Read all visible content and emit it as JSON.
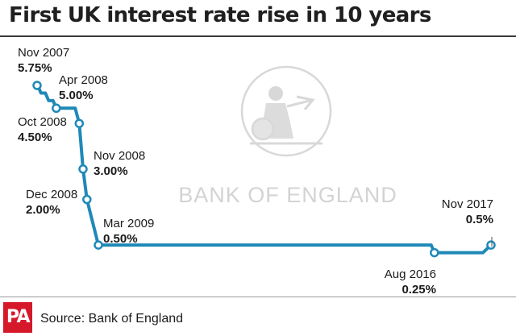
{
  "title": "First UK interest rate rise in 10 years",
  "source": "Source: Bank of England",
  "logo_text": "PA",
  "watermark_text": "BANK OF ENGLAND",
  "colors": {
    "line": "#1f89b8",
    "logo": "#d6182b",
    "watermark": "#d3d3d3"
  },
  "chart_data": {
    "type": "line",
    "title": "First UK interest rate rise in 10 years",
    "xlabel": "",
    "ylabel": "",
    "grid": false,
    "ylim": [
      0,
      6
    ],
    "series": [
      {
        "x": [
          "2007-11",
          "2007-12",
          "2008-02",
          "2008-04",
          "2008-10",
          "2008-11",
          "2008-12",
          "2009-01",
          "2009-02",
          "2009-03",
          "2016-08",
          "2017-11"
        ],
        "y": [
          5.75,
          5.5,
          5.25,
          5.0,
          4.5,
          3.0,
          2.0,
          1.5,
          1.0,
          0.5,
          0.25,
          0.5
        ]
      }
    ],
    "annotations": [
      {
        "date": "Nov 2007",
        "value": "5.75%"
      },
      {
        "date": "Apr 2008",
        "value": "5.00%"
      },
      {
        "date": "Oct 2008",
        "value": "4.50%"
      },
      {
        "date": "Nov 2008",
        "value": "3.00%"
      },
      {
        "date": "Dec 2008",
        "value": "2.00%"
      },
      {
        "date": "Mar 2009",
        "value": "0.50%"
      },
      {
        "date": "Aug 2016",
        "value": "0.25%"
      },
      {
        "date": "Nov 2017",
        "value": "0.5%"
      }
    ]
  }
}
